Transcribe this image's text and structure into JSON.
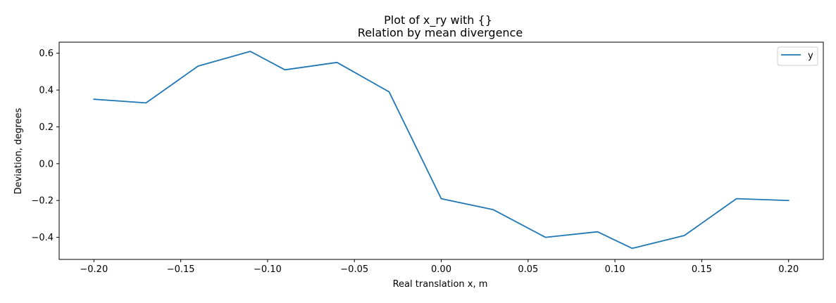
{
  "chart_data": {
    "type": "line",
    "suptitle": "Plot of x_ry with {}",
    "title": "Relation by mean divergence",
    "xlabel": "Real translation x, m",
    "ylabel": "Deviation, degrees",
    "xlim": [
      -0.22,
      0.22
    ],
    "ylim": [
      -0.52,
      0.66
    ],
    "xticks": [
      -0.2,
      -0.15,
      -0.1,
      -0.05,
      0.0,
      0.05,
      0.1,
      0.15,
      0.2
    ],
    "xtick_labels": [
      "−0.20",
      "−0.15",
      "−0.10",
      "−0.05",
      "0.00",
      "0.05",
      "0.10",
      "0.15",
      "0.20"
    ],
    "yticks": [
      -0.4,
      -0.2,
      0.0,
      0.2,
      0.4,
      0.6
    ],
    "ytick_labels": [
      "−0.4",
      "−0.2",
      "0.0",
      "0.2",
      "0.4",
      "0.6"
    ],
    "grid": false,
    "legend_position": "upper right",
    "series": [
      {
        "name": "y",
        "color": "#1f77b4",
        "x": [
          -0.2,
          -0.17,
          -0.14,
          -0.11,
          -0.09,
          -0.06,
          -0.03,
          0.0,
          0.03,
          0.06,
          0.09,
          0.11,
          0.14,
          0.17,
          0.2
        ],
        "y": [
          0.35,
          0.33,
          0.53,
          0.61,
          0.51,
          0.55,
          0.39,
          -0.19,
          -0.25,
          -0.4,
          -0.37,
          -0.46,
          -0.39,
          -0.19,
          -0.2
        ]
      }
    ]
  }
}
